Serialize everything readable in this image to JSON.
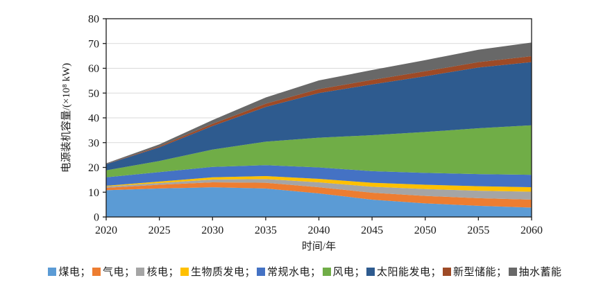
{
  "page": {
    "background": "#ffffff"
  },
  "axes": {
    "ylabel": "电源装机容量/(×10⁸ kW)",
    "xlabel": "时间/年"
  },
  "legend": {
    "separator": "；"
  },
  "chart_data": {
    "type": "area",
    "stacked": true,
    "title": "",
    "xlabel": "时间/年",
    "ylabel": "电源装机容量/(×10⁸ kW)",
    "x": [
      2020,
      2025,
      2030,
      2035,
      2040,
      2045,
      2050,
      2055,
      2060
    ],
    "x_ticks": [
      2020,
      2025,
      2030,
      2035,
      2040,
      2045,
      2050,
      2055,
      2060
    ],
    "y_ticks": [
      0,
      10,
      20,
      30,
      40,
      50,
      60,
      70,
      80
    ],
    "xlim": [
      2020,
      2060
    ],
    "ylim": [
      0,
      80
    ],
    "grid": "horizontal",
    "gridline_color": "#d9d9d9",
    "axis_color": "#1a1a1a",
    "legend_position": "bottom",
    "series": [
      {
        "key": "coal",
        "name": "煤电",
        "color": "#5b9bd5",
        "values": [
          10.8,
          11.5,
          12.0,
          11.5,
          9.5,
          7.0,
          5.5,
          4.5,
          3.8
        ]
      },
      {
        "key": "gas",
        "name": "气电",
        "color": "#ed7d31",
        "values": [
          1.0,
          1.5,
          2.0,
          2.3,
          2.5,
          2.8,
          3.0,
          3.1,
          3.2
        ]
      },
      {
        "key": "nuclear",
        "name": "核电",
        "color": "#a5a5a5",
        "values": [
          0.5,
          0.7,
          1.1,
          1.5,
          2.0,
          2.4,
          2.8,
          3.0,
          3.2
        ]
      },
      {
        "key": "biomass",
        "name": "生物质发电",
        "color": "#ffc000",
        "values": [
          0.3,
          0.6,
          0.9,
          1.2,
          1.4,
          1.6,
          1.7,
          1.8,
          1.8
        ]
      },
      {
        "key": "conv-hydro",
        "name": "常规水电",
        "color": "#4472c4",
        "values": [
          3.4,
          3.8,
          4.2,
          4.4,
          4.6,
          4.7,
          4.8,
          4.9,
          5.0
        ]
      },
      {
        "key": "wind",
        "name": "风电",
        "color": "#70ad47",
        "values": [
          2.8,
          4.5,
          7.0,
          9.5,
          12.0,
          14.5,
          16.5,
          18.5,
          20.0
        ]
      },
      {
        "key": "solar",
        "name": "太阳能发电",
        "color": "#2e5b8f",
        "values": [
          2.5,
          5.5,
          9.5,
          14.0,
          18.0,
          20.5,
          22.5,
          24.5,
          25.5
        ]
      },
      {
        "key": "new-storage",
        "name": "新型储能",
        "color": "#9e4a26",
        "values": [
          0.05,
          0.4,
          0.9,
          1.3,
          1.6,
          1.8,
          2.0,
          2.2,
          2.4
        ]
      },
      {
        "key": "pumped-storage",
        "name": "抽水蓄能",
        "color": "#686868",
        "values": [
          0.3,
          0.8,
          1.5,
          2.5,
          3.5,
          4.0,
          4.5,
          5.0,
          5.5
        ]
      }
    ]
  }
}
